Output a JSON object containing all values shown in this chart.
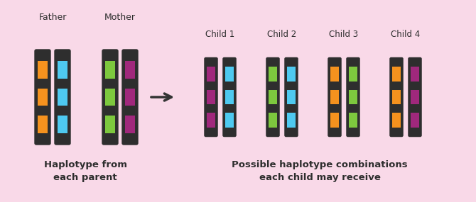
{
  "bg_color": "#f9d9e8",
  "colors": {
    "dark": "#2e2e2e",
    "orange": "#f5921e",
    "blue": "#4ec9f0",
    "green": "#7dc83e",
    "purple": "#a0287c"
  },
  "parent_labels": [
    "Father",
    "Mother"
  ],
  "child_labels": [
    "Child 1",
    "Child 2",
    "Child 3",
    "Child 4"
  ],
  "bottom_left": "Haplotype from\neach parent",
  "bottom_right": "Possible haplotype combinations\neach child may receive",
  "father_pair": [
    "orange",
    "blue"
  ],
  "mother_pair": [
    "green",
    "purple"
  ],
  "children": [
    [
      "purple",
      "blue"
    ],
    [
      "green",
      "blue"
    ],
    [
      "orange",
      "green"
    ],
    [
      "orange",
      "purple"
    ]
  ],
  "fig_width": 6.7,
  "fig_height": 2.85,
  "dpi": 100
}
